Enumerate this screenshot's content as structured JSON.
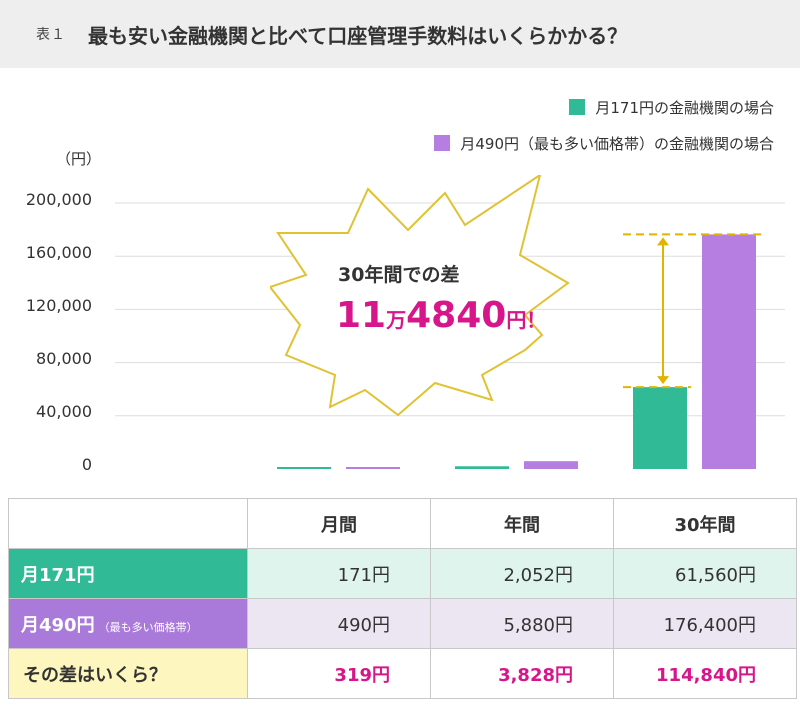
{
  "header": {
    "tag": "表１",
    "title": "最も安い金融機関と比べて口座管理手数料はいくらかかる？"
  },
  "colors": {
    "green": "#30bb96",
    "purple": "#b57ee0",
    "accent_magenta": "#d6168a",
    "annotation_gold": "#e0b400"
  },
  "annotation": {
    "line1": "30年間での差",
    "amount_part1": "11",
    "amount_part2": "万",
    "amount_part3": "4840",
    "amount_part4": "円！",
    "icon": "starburst-callout"
  },
  "chart_data": {
    "type": "bar",
    "categories": [
      "月間",
      "年間",
      "30年間"
    ],
    "series": [
      {
        "name": "月171円の金融機関の場合",
        "values": [
          171,
          2052,
          61560
        ]
      },
      {
        "name": "月490円（最も多い価格帯）の金融機関の場合",
        "values": [
          490,
          5880,
          176400
        ]
      }
    ],
    "ylabel": "（円）",
    "ylim": [
      0,
      200000
    ],
    "yticks": [
      0,
      40000,
      80000,
      120000,
      160000,
      200000
    ],
    "ytick_labels": [
      "0",
      "40,000",
      "80,000",
      "120,000",
      "160,000",
      "200,000"
    ],
    "grid": true,
    "legend_position": "top-right"
  },
  "table": {
    "headers": [
      "",
      "月間",
      "年間",
      "30年間"
    ],
    "rows": [
      {
        "label": "月171円",
        "note": "",
        "values": [
          "171円",
          "2,052円",
          "61,560円"
        ]
      },
      {
        "label": "月490円",
        "note": "（最も多い価格帯）",
        "values": [
          "490円",
          "5,880円",
          "176,400円"
        ]
      },
      {
        "label": "その差はいくら？",
        "note": "",
        "values": [
          "319円",
          "3,828円",
          "114,840円"
        ]
      }
    ]
  }
}
